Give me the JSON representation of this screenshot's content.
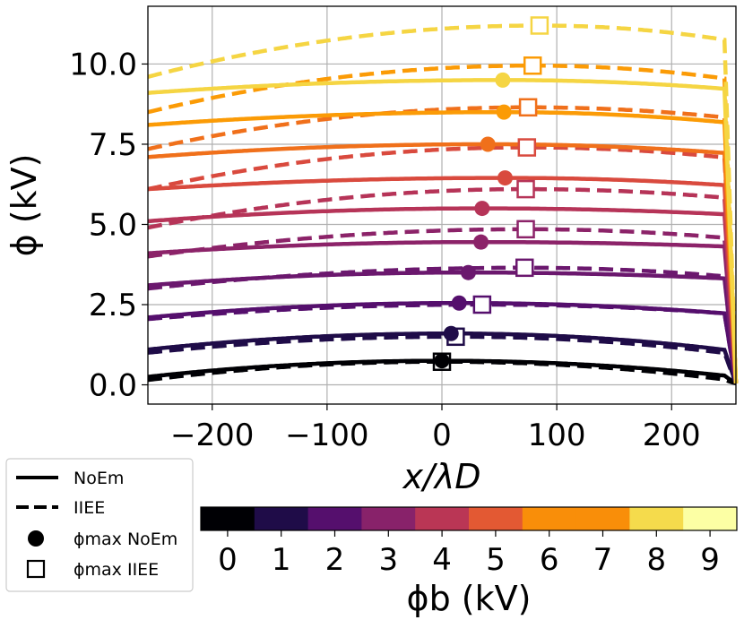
{
  "chart_data": {
    "type": "line",
    "xlabel": "x/λD",
    "ylabel": "ϕ (kV)",
    "xlim": [
      -256,
      256
    ],
    "ylim": [
      -0.6,
      11.8
    ],
    "xticks": [
      "−200",
      "−100",
      "0",
      "100",
      "200"
    ],
    "xtick_values": [
      -200,
      -100,
      0,
      100,
      200
    ],
    "yticks": [
      "0.0",
      "2.5",
      "5.0",
      "7.5",
      "10.0"
    ],
    "ytick_values": [
      0,
      2.5,
      5.0,
      7.5,
      10.0
    ],
    "grid": true,
    "legend_position": "lower-left, outside axes",
    "legend": [
      {
        "label": "NoEm",
        "style": "solid-line"
      },
      {
        "label": "IIEE",
        "style": "dashed-line"
      },
      {
        "label": "ϕmax NoEm",
        "style": "filled-circle"
      },
      {
        "label": "ϕmax IIEE",
        "style": "open-square"
      }
    ],
    "colorbar": {
      "label": "ϕb (kV)",
      "ticks": [
        "0",
        "1",
        "2",
        "3",
        "4",
        "5",
        "6",
        "7",
        "8",
        "9"
      ],
      "colors": [
        "#000004",
        "#1f0c48",
        "#550f6d",
        "#88226a",
        "#ba3655",
        "#e35933",
        "#f98e09",
        "#f98e09",
        "#f5db4c",
        "#fcffa4"
      ]
    },
    "series": [
      {
        "phi_b": 0,
        "color": "#000004",
        "noem": {
          "left": 0.25,
          "peak_x": 0,
          "peak": 0.75,
          "right": 0.25
        },
        "iiee": {
          "left": 0.15,
          "peak_x": 0,
          "peak": 0.72,
          "right": 0.12
        }
      },
      {
        "phi_b": 1,
        "color": "#1f0c48",
        "noem": {
          "left": 1.1,
          "peak_x": 8,
          "peak": 1.6,
          "right": 1.05
        },
        "iiee": {
          "left": 1.0,
          "peak_x": 12,
          "peak": 1.5,
          "right": 0.95
        }
      },
      {
        "phi_b": 2,
        "color": "#550f6d",
        "noem": {
          "left": 2.1,
          "peak_x": 15,
          "peak": 2.55,
          "right": 2.2
        },
        "iiee": {
          "left": 2.05,
          "peak_x": 35,
          "peak": 2.5,
          "right": 2.2
        }
      },
      {
        "phi_b": 3,
        "color": "#6b186e",
        "noem": {
          "left": 3.1,
          "peak_x": 23,
          "peak": 3.5,
          "right": 3.3
        },
        "iiee": {
          "left": 3.0,
          "peak_x": 72,
          "peak": 3.65,
          "right": 3.35
        }
      },
      {
        "phi_b": 4,
        "color": "#8c2369",
        "noem": {
          "left": 4.1,
          "peak_x": 34,
          "peak": 4.45,
          "right": 4.3
        },
        "iiee": {
          "left": 4.0,
          "peak_x": 73,
          "peak": 4.85,
          "right": 4.55
        }
      },
      {
        "phi_b": 5,
        "color": "#b63458",
        "noem": {
          "left": 5.1,
          "peak_x": 35,
          "peak": 5.5,
          "right": 5.3
        },
        "iiee": {
          "left": 4.9,
          "peak_x": 73,
          "peak": 6.1,
          "right": 5.8
        }
      },
      {
        "phi_b": 6,
        "color": "#d94a3e",
        "noem": {
          "left": 6.1,
          "peak_x": 55,
          "peak": 6.45,
          "right": 6.2
        },
        "iiee": {
          "left": 6.1,
          "peak_x": 74,
          "peak": 7.4,
          "right": 7.05
        }
      },
      {
        "phi_b": 7,
        "color": "#f0701b",
        "noem": {
          "left": 7.1,
          "peak_x": 40,
          "peak": 7.5,
          "right": 7.2
        },
        "iiee": {
          "left": 7.35,
          "peak_x": 75,
          "peak": 8.65,
          "right": 8.3
        }
      },
      {
        "phi_b": 8,
        "color": "#fb9b06",
        "noem": {
          "left": 8.1,
          "peak_x": 54,
          "peak": 8.5,
          "right": 8.15
        },
        "iiee": {
          "left": 8.5,
          "peak_x": 79,
          "peak": 9.95,
          "right": 9.5
        }
      },
      {
        "phi_b": 9,
        "color": "#f5d543",
        "noem": {
          "left": 9.1,
          "peak_x": 53,
          "peak": 9.5,
          "right": 9.2
        },
        "iiee": {
          "left": 9.6,
          "peak_x": 85,
          "peak": 11.2,
          "right": 10.7
        }
      }
    ]
  }
}
